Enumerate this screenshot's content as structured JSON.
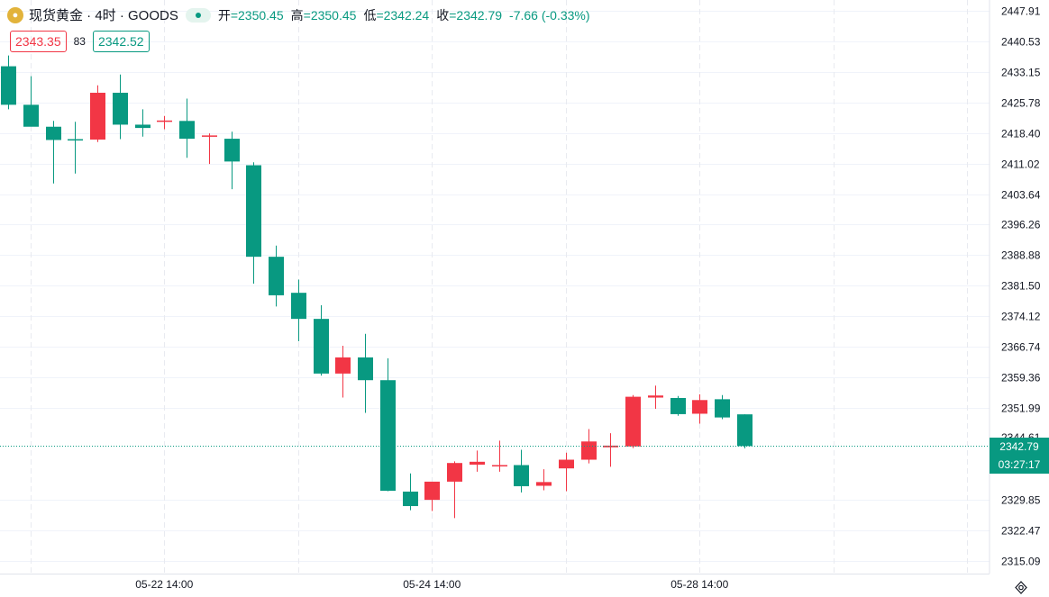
{
  "header": {
    "symbol_icon": "gold-coin-icon",
    "title": "现货黄金 · 4时 · GOODS",
    "ohlc": [
      {
        "label": "开",
        "value": "=2350.45"
      },
      {
        "label": "高",
        "value": "=2350.45"
      },
      {
        "label": "低",
        "value": "=2342.24"
      },
      {
        "label": "收",
        "value": "=2342.79"
      }
    ],
    "change": "-7.66 (-0.33%)",
    "sell_price": "2343.35",
    "spread": "83",
    "buy_price": "2342.52"
  },
  "price_scale": {
    "last_price": "2342.79",
    "countdown": "03:27:17",
    "partial_label": "2344.61"
  },
  "colors": {
    "up": "#f23645",
    "down": "#089981",
    "grid": "#f0f3fa",
    "text": "#131722"
  },
  "chart_data": {
    "type": "candlestick",
    "y_ticks": [
      2447.91,
      2440.53,
      2433.15,
      2425.78,
      2418.4,
      2411.02,
      2403.64,
      2396.26,
      2388.88,
      2381.5,
      2374.12,
      2366.74,
      2359.36,
      2351.99,
      2329.85,
      2322.47,
      2315.09
    ],
    "ylim": [
      2312.0,
      2450.5
    ],
    "x_labels": [
      "05-22 14:00",
      "05-24 14:00",
      "05-28 14:00"
    ],
    "x_label_bar_index": [
      7,
      19,
      31
    ],
    "candles": [
      {
        "o": 2434.5,
        "h": 2437.1,
        "l": 2424.1,
        "c": 2425.2
      },
      {
        "o": 2425.2,
        "h": 2432.1,
        "l": 2420.3,
        "c": 2419.9
      },
      {
        "o": 2419.9,
        "h": 2421.3,
        "l": 2406.2,
        "c": 2416.7
      },
      {
        "o": 2416.9,
        "h": 2421.1,
        "l": 2408.6,
        "c": 2416.8
      },
      {
        "o": 2416.8,
        "h": 2429.9,
        "l": 2416.2,
        "c": 2428.1
      },
      {
        "o": 2428.1,
        "h": 2432.5,
        "l": 2416.9,
        "c": 2420.4
      },
      {
        "o": 2420.4,
        "h": 2424.1,
        "l": 2417.5,
        "c": 2419.6
      },
      {
        "o": 2421.2,
        "h": 2422.5,
        "l": 2419.3,
        "c": 2421.4
      },
      {
        "o": 2421.3,
        "h": 2426.7,
        "l": 2412.4,
        "c": 2417.0
      },
      {
        "o": 2417.6,
        "h": 2418.3,
        "l": 2410.9,
        "c": 2417.8
      },
      {
        "o": 2417.0,
        "h": 2418.7,
        "l": 2404.8,
        "c": 2411.5
      },
      {
        "o": 2410.6,
        "h": 2411.3,
        "l": 2382.0,
        "c": 2388.5
      },
      {
        "o": 2388.5,
        "h": 2391.2,
        "l": 2376.5,
        "c": 2379.2
      },
      {
        "o": 2379.8,
        "h": 2383.0,
        "l": 2368.1,
        "c": 2373.5
      },
      {
        "o": 2373.5,
        "h": 2376.8,
        "l": 2359.8,
        "c": 2360.3
      },
      {
        "o": 2360.3,
        "h": 2367.0,
        "l": 2354.5,
        "c": 2364.2
      },
      {
        "o": 2364.2,
        "h": 2369.9,
        "l": 2350.8,
        "c": 2358.7
      },
      {
        "o": 2358.7,
        "h": 2364.0,
        "l": 2331.9,
        "c": 2332.0
      },
      {
        "o": 2331.8,
        "h": 2336.2,
        "l": 2327.3,
        "c": 2328.3
      },
      {
        "o": 2329.8,
        "h": 2334.1,
        "l": 2327.1,
        "c": 2334.2
      },
      {
        "o": 2334.2,
        "h": 2339.1,
        "l": 2325.4,
        "c": 2338.7
      },
      {
        "o": 2338.3,
        "h": 2341.7,
        "l": 2336.6,
        "c": 2339.0
      },
      {
        "o": 2338.0,
        "h": 2344.1,
        "l": 2336.6,
        "c": 2338.2
      },
      {
        "o": 2338.2,
        "h": 2341.9,
        "l": 2331.6,
        "c": 2333.1
      },
      {
        "o": 2333.2,
        "h": 2337.2,
        "l": 2332.1,
        "c": 2334.1
      },
      {
        "o": 2337.4,
        "h": 2341.2,
        "l": 2331.9,
        "c": 2339.5
      },
      {
        "o": 2339.5,
        "h": 2346.9,
        "l": 2338.6,
        "c": 2343.9
      },
      {
        "o": 2342.5,
        "h": 2345.9,
        "l": 2337.8,
        "c": 2342.9
      },
      {
        "o": 2342.7,
        "h": 2355.1,
        "l": 2342.3,
        "c": 2354.7
      },
      {
        "o": 2354.5,
        "h": 2357.4,
        "l": 2351.8,
        "c": 2355.0
      },
      {
        "o": 2354.4,
        "h": 2354.9,
        "l": 2350.1,
        "c": 2350.5
      },
      {
        "o": 2350.6,
        "h": 2355.3,
        "l": 2348.2,
        "c": 2353.9
      },
      {
        "o": 2354.1,
        "h": 2355.1,
        "l": 2349.3,
        "c": 2349.7
      },
      {
        "o": 2350.45,
        "h": 2350.45,
        "l": 2342.24,
        "c": 2342.79
      }
    ]
  }
}
